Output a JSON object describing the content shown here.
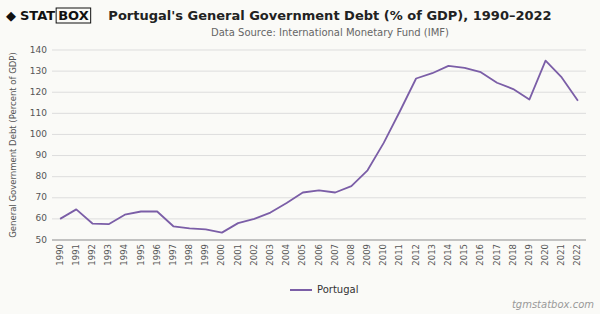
{
  "chart_data": {
    "type": "line",
    "title": "Portugal's General Government Debt (% of GDP), 1990–2022",
    "subtitle": "Data Source: International Monetary Fund (IMF)",
    "y_label": "General Government Debt (Percent of GDP)",
    "annotations": [
      "tgmstatbox.com",
      "◆",
      "STAT",
      "BOX"
    ],
    "x": [
      1990,
      1991,
      1992,
      1993,
      1994,
      1995,
      1996,
      1997,
      1998,
      1999,
      2000,
      2001,
      2002,
      2003,
      2004,
      2005,
      2006,
      2007,
      2008,
      2009,
      2010,
      2011,
      2012,
      2013,
      2014,
      2015,
      2016,
      2017,
      2018,
      2019,
      2020,
      2021,
      2022
    ],
    "series": [
      {
        "name": "Portugal",
        "color": "#7B5EA7",
        "values": [
          60.0,
          64.5,
          57.8,
          57.5,
          62.0,
          63.5,
          63.5,
          56.5,
          55.5,
          55.0,
          53.5,
          58.0,
          60.0,
          63.0,
          67.5,
          72.5,
          73.5,
          72.5,
          75.5,
          83.0,
          96.0,
          111.0,
          126.5,
          129.0,
          132.5,
          131.5,
          129.5,
          124.5,
          121.5,
          116.5,
          135.0,
          127.0,
          116.0
        ]
      }
    ],
    "xlim": [
      1989.5,
      2022.5
    ],
    "xticks": [
      1990,
      1991,
      1992,
      1993,
      1994,
      1995,
      1996,
      1997,
      1998,
      1999,
      2000,
      2001,
      2002,
      2003,
      2004,
      2005,
      2006,
      2007,
      2008,
      2009,
      2010,
      2011,
      2012,
      2013,
      2014,
      2015,
      2016,
      2017,
      2018,
      2019,
      2020,
      2021,
      2022
    ],
    "ylim": [
      50,
      140
    ],
    "yticks": [
      50,
      60,
      70,
      80,
      90,
      100,
      110,
      120,
      130,
      140
    ],
    "grid": true,
    "legend": "bottom"
  }
}
